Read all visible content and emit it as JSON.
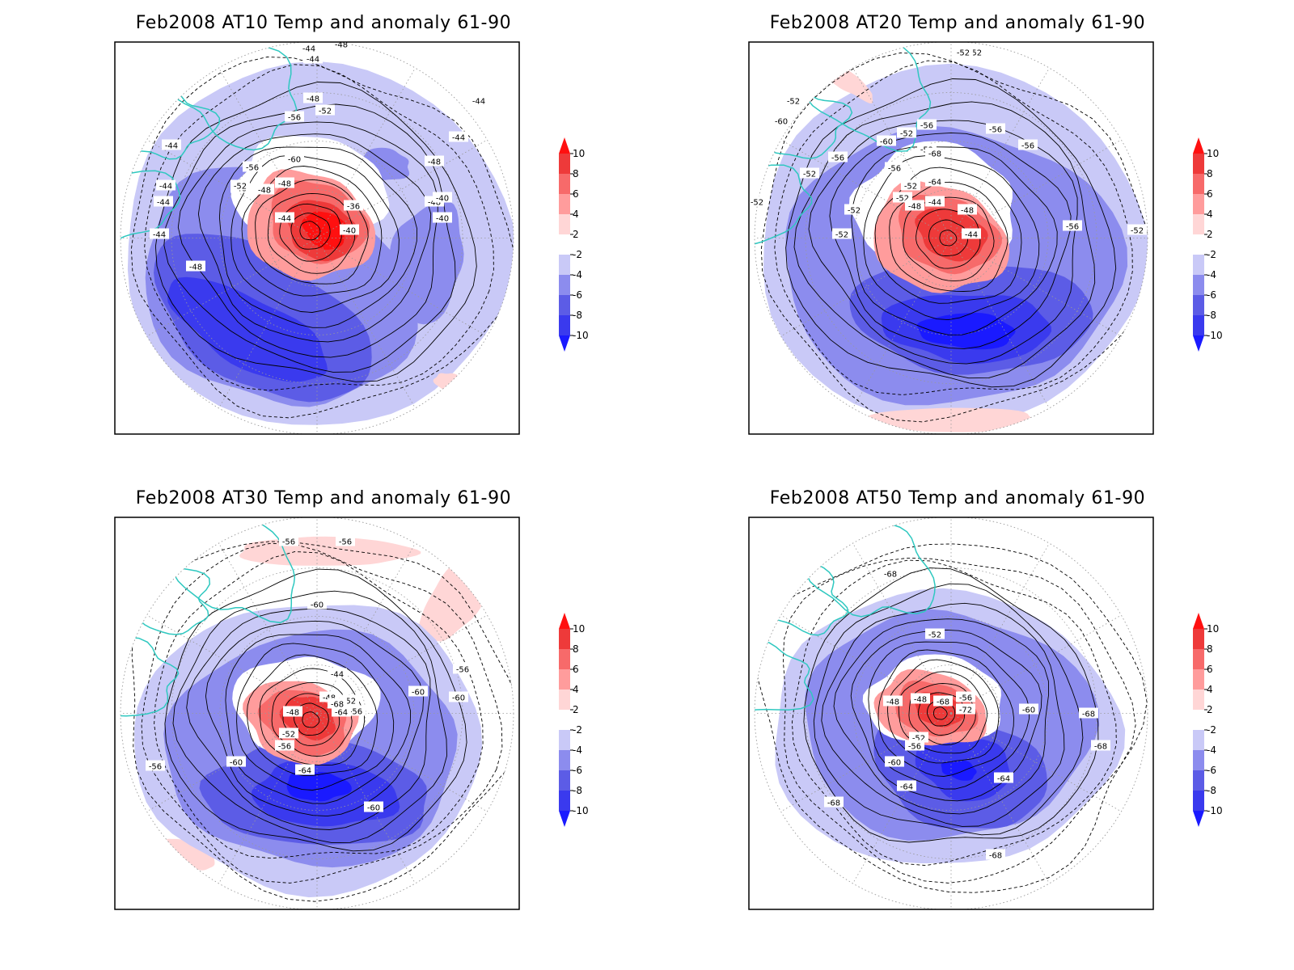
{
  "colors": {
    "anomaly_scale": [
      "#1a1aff",
      "#3a3aee",
      "#5c5ce6",
      "#8c8cee",
      "#c9c9f7",
      "#ffffff",
      "#ffd6d6",
      "#ff9c9c",
      "#f76a6a",
      "#ee3a3a",
      "#ff1010"
    ],
    "coastline": "#2fc8c0",
    "contour": "#000000",
    "grid": "#999999"
  },
  "colorbar": {
    "labels": [
      "10",
      "8",
      "6",
      "4",
      "2",
      "-2",
      "-4",
      "-6",
      "-8",
      "-10"
    ]
  },
  "panels": [
    {
      "id": "at10",
      "title": "Feb2008 AT10 Temp and anomaly 61-90",
      "contour_labels": [
        "-44",
        "-48",
        "-48",
        "-44",
        "-44",
        "-40",
        "-44",
        "-52",
        "-56",
        "-60",
        "-48",
        "-48",
        "-36",
        "-48",
        "-56",
        "-52",
        "-48",
        "-44",
        "-40",
        "-40",
        "-44",
        "-48",
        "-44",
        "-44",
        "-48",
        "-44",
        "-44"
      ]
    },
    {
      "id": "at20",
      "title": "Feb2008 AT20 Temp and anomaly 61-90",
      "contour_labels": [
        "-52",
        "-52",
        "-52",
        "-52",
        "-56",
        "-56",
        "-56",
        "-52",
        "-52",
        "-44",
        "-44",
        "-48",
        "-52",
        "-48",
        "-64",
        "-56",
        "-52",
        "-68",
        "-60",
        "-56",
        "-60",
        "-52",
        "-52",
        "-52",
        "-56",
        "-52"
      ]
    },
    {
      "id": "at30",
      "title": "Feb2008 AT30 Temp and anomaly 61-90",
      "contour_labels": [
        "-56",
        "-56",
        "-60",
        "-44",
        "-48",
        "-52",
        "-56",
        "-64",
        "-68",
        "-48",
        "-52",
        "-56",
        "-60",
        "-60",
        "-60",
        "-64",
        "-56",
        "-60",
        "-56"
      ]
    },
    {
      "id": "at50",
      "title": "Feb2008 AT50 Temp and anomaly 61-90",
      "contour_labels": [
        "-68",
        "-52",
        "-48",
        "-48",
        "-56",
        "-68",
        "-72",
        "-60",
        "-52",
        "-56",
        "-60",
        "-64",
        "-64",
        "-68",
        "-68",
        "-68",
        "-68"
      ]
    }
  ]
}
